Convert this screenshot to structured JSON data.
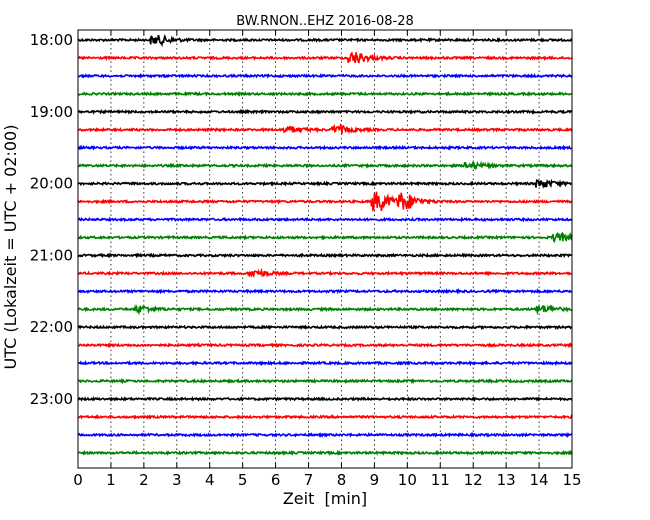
{
  "chart_data": {
    "type": "line",
    "title": "BW.RNON..EHZ 2016-08-28",
    "xlabel": "Zeit  [min]",
    "ylabel": "UTC (Lokalzeit = UTC + 02:00)",
    "xlim": [
      0,
      15
    ],
    "x_ticks": [
      0,
      1,
      2,
      3,
      4,
      5,
      6,
      7,
      8,
      9,
      10,
      11,
      12,
      13,
      14,
      15
    ],
    "y_tick_labels": [
      "18:00",
      "19:00",
      "20:00",
      "21:00",
      "22:00",
      "23:00"
    ],
    "grid": "vertical dotted",
    "colors": [
      "#000000",
      "#ff0000",
      "#0000ff",
      "#008000"
    ],
    "traces": [
      {
        "start": "18:00",
        "color": "#000000",
        "events": [
          {
            "t": 2.5,
            "amp": 0.45
          }
        ]
      },
      {
        "start": "18:15",
        "color": "#ff0000",
        "events": [
          {
            "t": 8.5,
            "amp": 0.6
          }
        ]
      },
      {
        "start": "18:30",
        "color": "#0000ff",
        "events": []
      },
      {
        "start": "18:45",
        "color": "#008000",
        "events": []
      },
      {
        "start": "19:00",
        "color": "#000000",
        "events": []
      },
      {
        "start": "19:15",
        "color": "#ff0000",
        "events": [
          {
            "t": 6.5,
            "amp": 0.3
          },
          {
            "t": 8.0,
            "amp": 0.35
          }
        ]
      },
      {
        "start": "19:30",
        "color": "#0000ff",
        "events": []
      },
      {
        "start": "19:45",
        "color": "#008000",
        "events": [
          {
            "t": 12.0,
            "amp": 0.3
          }
        ]
      },
      {
        "start": "20:00",
        "color": "#000000",
        "events": [
          {
            "t": 14.2,
            "amp": 0.35
          }
        ]
      },
      {
        "start": "20:15",
        "color": "#ff0000",
        "events": [
          {
            "t": 9.2,
            "amp": 1.0
          },
          {
            "t": 10.0,
            "amp": 0.8
          }
        ]
      },
      {
        "start": "20:30",
        "color": "#0000ff",
        "events": []
      },
      {
        "start": "20:45",
        "color": "#008000",
        "events": [
          {
            "t": 14.7,
            "amp": 0.35
          }
        ]
      },
      {
        "start": "21:00",
        "color": "#000000",
        "events": []
      },
      {
        "start": "21:15",
        "color": "#ff0000",
        "events": [
          {
            "t": 5.5,
            "amp": 0.3
          }
        ]
      },
      {
        "start": "21:30",
        "color": "#0000ff",
        "events": []
      },
      {
        "start": "21:45",
        "color": "#008000",
        "events": [
          {
            "t": 2.0,
            "amp": 0.3
          },
          {
            "t": 14.2,
            "amp": 0.35
          }
        ]
      },
      {
        "start": "22:00",
        "color": "#000000",
        "events": []
      },
      {
        "start": "22:15",
        "color": "#ff0000",
        "events": []
      },
      {
        "start": "22:30",
        "color": "#0000ff",
        "events": []
      },
      {
        "start": "22:45",
        "color": "#008000",
        "events": []
      },
      {
        "start": "23:00",
        "color": "#000000",
        "events": []
      },
      {
        "start": "23:15",
        "color": "#ff0000",
        "events": []
      },
      {
        "start": "23:30",
        "color": "#0000ff",
        "events": []
      },
      {
        "start": "23:45",
        "color": "#008000",
        "events": []
      }
    ]
  }
}
